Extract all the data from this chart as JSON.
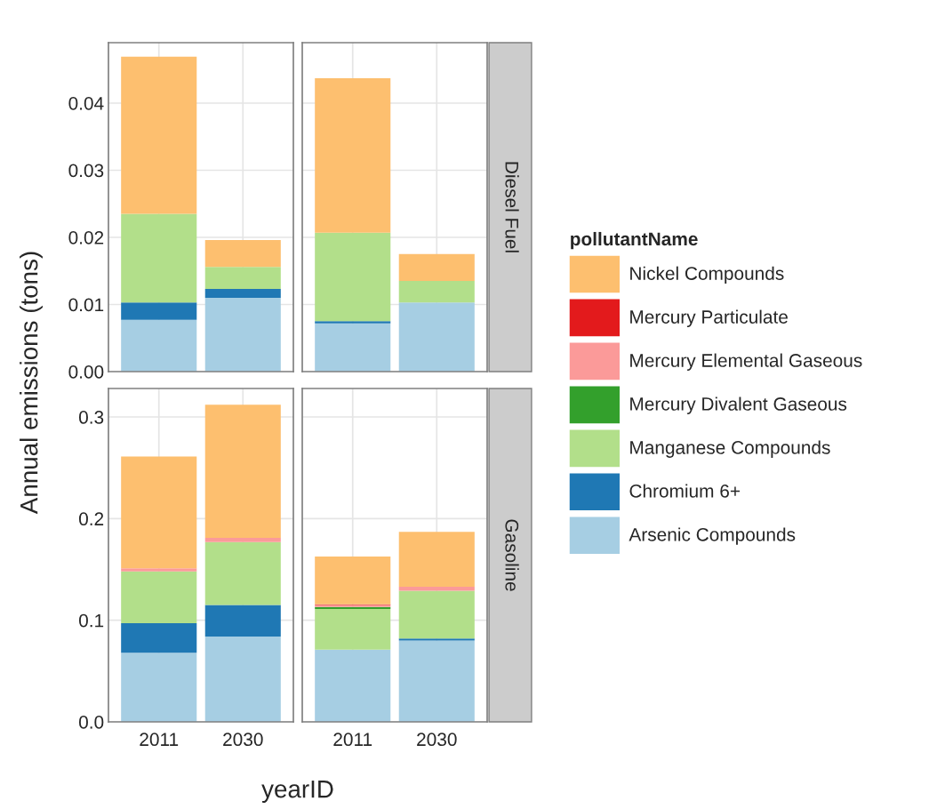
{
  "chart_data": [
    {
      "type": "bar",
      "stacked": true,
      "categories": [
        "2011",
        "2030"
      ],
      "ylabel": "Annual emissions (tons)",
      "legend": "right",
      "legend_title": "pollutantName",
      "grid": true,
      "tick_labels": "y",
      "ylim": [
        0,
        0.049
      ],
      "yticks": [
        {
          "value": 0,
          "label": "0.00"
        },
        {
          "value": 0.01,
          "label": "0.01"
        },
        {
          "value": 0.02,
          "label": "0.02"
        },
        {
          "value": 0.03,
          "label": "0.03"
        },
        {
          "value": 0.04,
          "label": "0.04"
        }
      ],
      "series": [
        {
          "name": "Arsenic Compounds",
          "color": "#a6cee3",
          "values": [
            0.0077,
            0.011
          ]
        },
        {
          "name": "Chromium 6+",
          "color": "#1f78b4",
          "values": [
            0.0026,
            0.0013
          ]
        },
        {
          "name": "Manganese Compounds",
          "color": "#b2df8a",
          "values": [
            0.0132,
            0.0033
          ]
        },
        {
          "name": "Mercury Divalent Gaseous",
          "color": "#33a02c",
          "values": [
            0,
            0
          ]
        },
        {
          "name": "Mercury Elemental Gaseous",
          "color": "#fb9a99",
          "values": [
            0,
            0
          ]
        },
        {
          "name": "Mercury Particulate",
          "color": "#e31a1c",
          "values": [
            0,
            0
          ]
        },
        {
          "name": "Nickel Compounds",
          "color": "#fdbf6f",
          "values": [
            0.0234,
            0.004
          ]
        }
      ]
    },
    {
      "type": "bar",
      "stacked": true,
      "categories": [
        "2011",
        "2030"
      ],
      "y2label": "Diesel Fuel",
      "grid": true,
      "tick_labels": false,
      "ylim": [
        0,
        0.049
      ],
      "yticks": [
        0,
        0.01,
        0.02,
        0.03,
        0.04
      ],
      "series": [
        {
          "color": "#a6cee3",
          "values": [
            0.0072,
            0.0103
          ]
        },
        {
          "color": "#1f78b4",
          "values": [
            0.0003,
            0
          ]
        },
        {
          "color": "#b2df8a",
          "values": [
            0.0132,
            0.0032
          ]
        },
        {
          "color": "#33a02c",
          "values": [
            0,
            0
          ]
        },
        {
          "color": "#fb9a99",
          "values": [
            0,
            0
          ]
        },
        {
          "color": "#e31a1c",
          "values": [
            0,
            0
          ]
        },
        {
          "color": "#fdbf6f",
          "values": [
            0.023,
            0.004
          ]
        }
      ]
    },
    {
      "type": "bar",
      "stacked": true,
      "categories": [
        "2011",
        "2030"
      ],
      "xlabel": "yearID",
      "grid": true,
      "ylim": [
        0,
        0.328
      ],
      "yticks": [
        {
          "value": 0,
          "label": "0.0"
        },
        {
          "value": 0.1,
          "label": "0.1"
        },
        {
          "value": 0.2,
          "label": "0.2"
        },
        {
          "value": 0.3,
          "label": "0.3"
        }
      ],
      "series": [
        {
          "color": "#a6cee3",
          "values": [
            0.068,
            0.084
          ]
        },
        {
          "color": "#1f78b4",
          "values": [
            0.029,
            0.031
          ]
        },
        {
          "color": "#b2df8a",
          "values": [
            0.051,
            0.062
          ]
        },
        {
          "color": "#33a02c",
          "values": [
            0,
            0
          ]
        },
        {
          "color": "#fb9a99",
          "values": [
            0.003,
            0.004
          ]
        },
        {
          "color": "#e31a1c",
          "values": [
            0,
            0
          ]
        },
        {
          "color": "#fdbf6f",
          "values": [
            0.11,
            0.131
          ]
        }
      ]
    },
    {
      "type": "bar",
      "stacked": true,
      "categories": [
        "2011",
        "2030"
      ],
      "y2label": "Gasoline",
      "grid": true,
      "tick_labels": "x",
      "ylim": [
        0,
        0.328
      ],
      "yticks": [
        0,
        0.1,
        0.2,
        0.3
      ],
      "series": [
        {
          "color": "#a6cee3",
          "values": [
            0.071,
            0.08
          ]
        },
        {
          "color": "#1f78b4",
          "values": [
            null,
            0.002
          ]
        },
        {
          "color": "#b2df8a",
          "values": [
            0.04,
            0.047
          ]
        },
        {
          "color": "#33a02c",
          "values": [
            0.002,
            0
          ]
        },
        {
          "color": "#fb9a99",
          "values": [
            0.002,
            0.004
          ]
        },
        {
          "color": "#e31a1c",
          "values": [
            0.0006,
            0
          ]
        },
        {
          "color": "#fdbf6f",
          "values": [
            0.047,
            0.054
          ]
        }
      ]
    }
  ]
}
